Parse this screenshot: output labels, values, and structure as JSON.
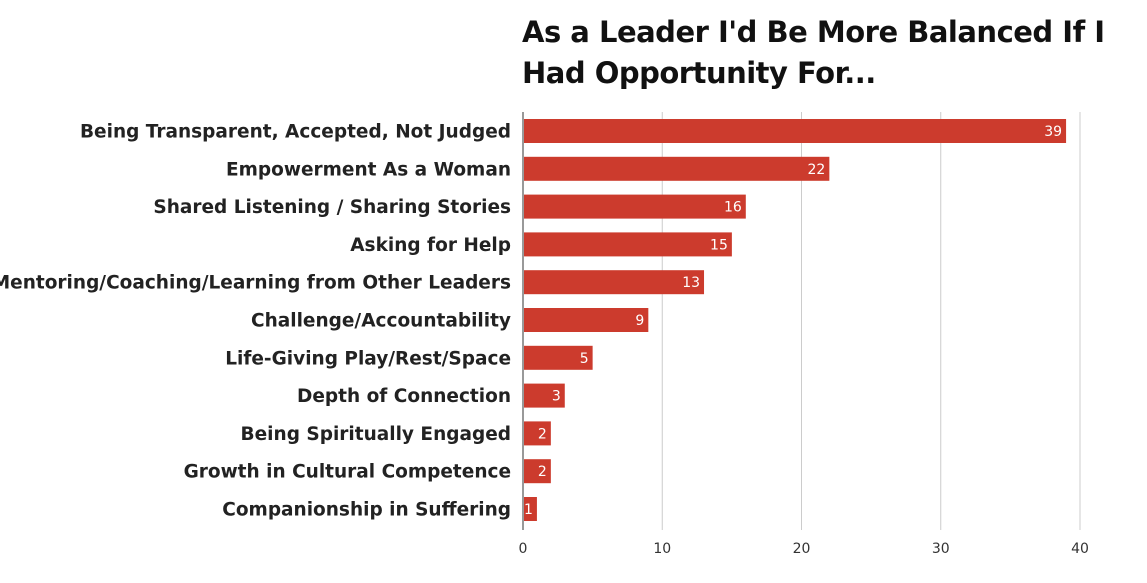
{
  "chart_data": {
    "type": "bar",
    "orientation": "horizontal",
    "title": "As a Leader I'd Be More Balanced If I Had Opportunity For...",
    "categories": [
      "Being Transparent, Accepted, Not Judged",
      "Empowerment As a Woman",
      "Shared Listening / Sharing Stories",
      "Asking for Help",
      "Mentoring/Coaching/Learning from Other Leaders",
      "Challenge/Accountability",
      "Life-Giving Play/Rest/Space",
      "Depth of Connection",
      "Being Spiritually Engaged",
      "Growth in Cultural Competence",
      "Companionship in Suffering"
    ],
    "values": [
      39,
      22,
      16,
      15,
      13,
      9,
      5,
      3,
      2,
      2,
      1
    ],
    "xlim": [
      0,
      40
    ],
    "xticks": [
      0,
      10,
      20,
      30,
      40
    ],
    "xlabel": "",
    "ylabel": "",
    "grid": "vertical",
    "data_labels": "inside-end",
    "bar_color": "#cc3b2d"
  }
}
